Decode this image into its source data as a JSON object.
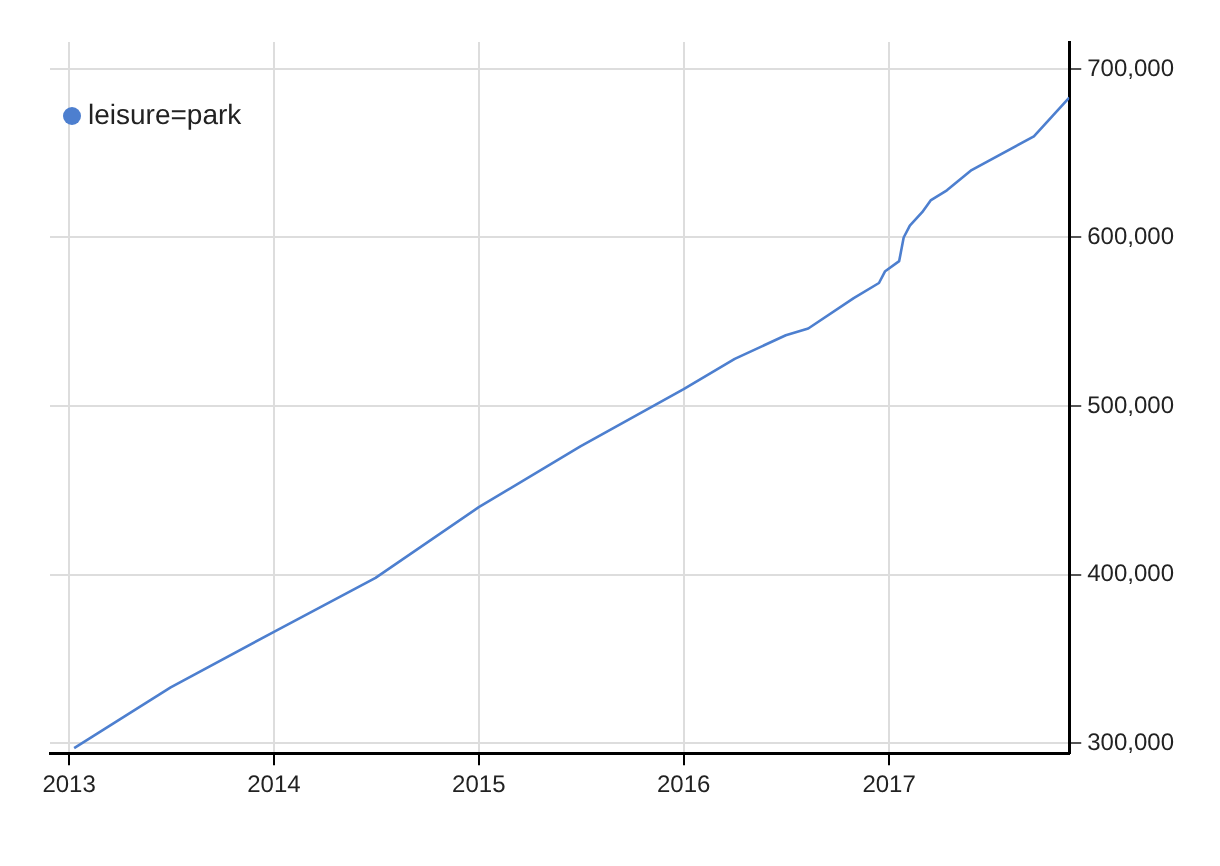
{
  "chart_data": {
    "type": "line",
    "legend": "top left",
    "grid": true,
    "marker": "none",
    "x": [
      "2013-01-10",
      "2013-07-01",
      "2014-01-01",
      "2014-07-01",
      "2015-01-01",
      "2015-07-01",
      "2016-01-01",
      "2016-04-01",
      "2016-07-01",
      "2016-08-10",
      "2016-10-30",
      "2016-12-14",
      "2016-12-25",
      "2017-01-19",
      "2017-01-27",
      "2017-02-07",
      "2017-03-01",
      "2017-03-16",
      "2017-04-14",
      "2017-05-28",
      "2017-09-16",
      "2017-11-18"
    ],
    "series": [
      {
        "name": "leisure=park",
        "color": "#4d7fcf",
        "values": [
          297000,
          333000,
          366000,
          398000,
          440000,
          476000,
          510000,
          528000,
          542000,
          546000,
          564000,
          573000,
          580000,
          586000,
          600000,
          607000,
          615000,
          622000,
          628000,
          640000,
          660000,
          683000
        ]
      }
    ],
    "xlim": [
      "2012-11-28",
      "2017-11-18"
    ],
    "xticks": [
      "2013",
      "2014",
      "2015",
      "2016",
      "2017"
    ],
    "ylim": [
      294000,
      716000
    ],
    "yticks": [
      {
        "value": 300000,
        "label": "300,000"
      },
      {
        "value": 400000,
        "label": "400,000"
      },
      {
        "value": 500000,
        "label": "500,000"
      },
      {
        "value": 600000,
        "label": "600,000"
      },
      {
        "value": 700000,
        "label": "700,000"
      }
    ]
  }
}
